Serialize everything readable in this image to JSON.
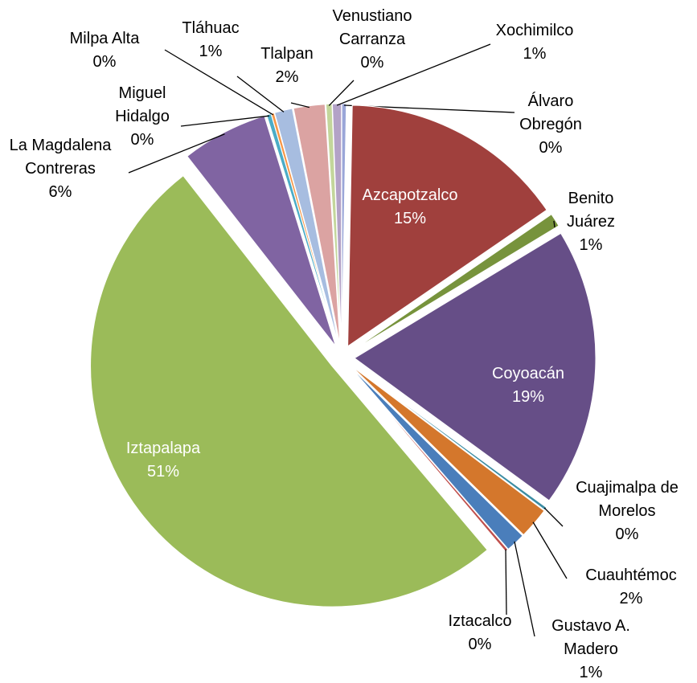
{
  "chart_data": {
    "type": "pie",
    "categories": [
      "Álvaro Obregón",
      "Azcapotzalco",
      "Benito Juárez",
      "Coyoacán",
      "Cuajimalpa de Morelos",
      "Cuauhtémoc",
      "Gustavo A. Madero",
      "Iztacalco",
      "Iztapalapa",
      "La Magdalena Contreras",
      "Miguel Hidalgo",
      "Milpa Alta",
      "Tláhuac",
      "Tlalpan",
      "Venustiano Carranza",
      "Xochimilco"
    ],
    "values": [
      0.3,
      15.2,
      0.9,
      18.8,
      0.2,
      2.1,
      1.3,
      0.2,
      50.8,
      5.8,
      0.3,
      0.2,
      1.2,
      2.1,
      0.4,
      0.6
    ],
    "value_labels": [
      "0%",
      "15%",
      "1%",
      "19%",
      "0%",
      "2%",
      "1%",
      "0%",
      "51%",
      "6%",
      "0%",
      "0%",
      "1%",
      "2%",
      "0%",
      "1%"
    ],
    "colors": [
      "#9aa6d8",
      "#a0403d",
      "#77933c",
      "#664e87",
      "#3c8da3",
      "#d4772c",
      "#4a7ebb",
      "#c0504d",
      "#9bbb59",
      "#8064a2",
      "#4bacc6",
      "#f79646",
      "#a7bde0",
      "#dba3a2",
      "#c3d69b",
      "#b3a2c7"
    ]
  }
}
